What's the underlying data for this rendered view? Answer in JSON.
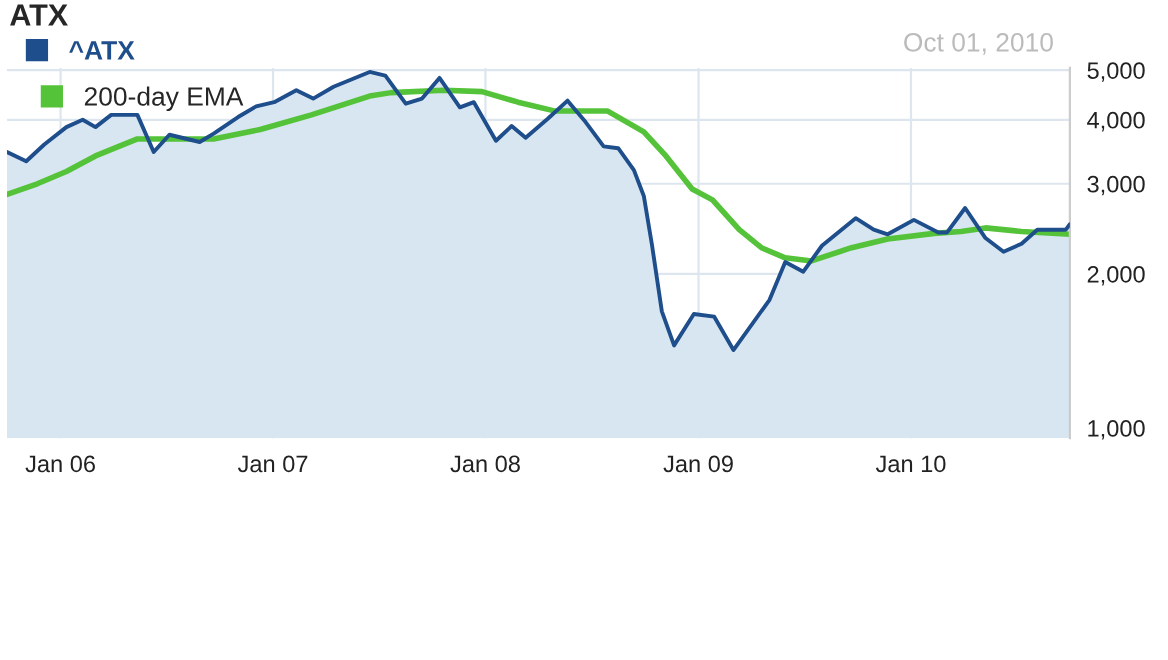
{
  "chart_data": {
    "type": "area",
    "title": "ATX",
    "annotations": [
      "Oct 01, 2010"
    ],
    "log": "y",
    "grid": true,
    "legend": "top left",
    "xlim": [
      "2005-10-01",
      "2010-10-01"
    ],
    "xticks": [
      {
        "value": "2006-01-01",
        "label": "Jan 06"
      },
      {
        "value": "2007-01-01",
        "label": "Jan 07"
      },
      {
        "value": "2008-01-01",
        "label": "Jan 08"
      },
      {
        "value": "2009-01-01",
        "label": "Jan 09"
      },
      {
        "value": "2010-01-01",
        "label": "Jan 10"
      }
    ],
    "ylim": [
      955,
      5050
    ],
    "yticks": [
      {
        "value": 1000,
        "label": "1,000"
      },
      {
        "value": 2000,
        "label": "2,000"
      },
      {
        "value": 3000,
        "label": "3,000"
      },
      {
        "value": 4000,
        "label": "4,000"
      },
      {
        "value": 5000,
        "label": "5,000"
      }
    ],
    "series": [
      {
        "name": "^ATX",
        "color": "#1f4e8c",
        "x": [
          "2005-10-01",
          "2005-11-03",
          "2005-12-04",
          "2006-01-11",
          "2006-02-08",
          "2006-03-02",
          "2006-03-29",
          "2006-05-13",
          "2006-06-10",
          "2006-07-07",
          "2006-08-28",
          "2006-09-21",
          "2006-11-02",
          "2006-12-03",
          "2007-01-03",
          "2007-02-10",
          "2007-03-11",
          "2007-04-15",
          "2007-06-16",
          "2007-07-13",
          "2007-08-17",
          "2007-09-14",
          "2007-10-14",
          "2007-11-18",
          "2007-12-12",
          "2008-01-19",
          "2008-02-15",
          "2008-03-10",
          "2008-04-17",
          "2008-05-21",
          "2008-06-21",
          "2008-07-22",
          "2008-08-16",
          "2008-09-12",
          "2008-09-29",
          "2008-10-13",
          "2008-10-30",
          "2008-11-20",
          "2008-12-24",
          "2009-01-28",
          "2009-03-02",
          "2009-05-03",
          "2009-05-30",
          "2009-06-30",
          "2009-08-01",
          "2009-09-28",
          "2009-10-29",
          "2009-11-22",
          "2010-01-06",
          "2010-02-17",
          "2010-03-04",
          "2010-04-04",
          "2010-05-09",
          "2010-06-09",
          "2010-07-10",
          "2010-08-06",
          "2010-09-24",
          "2010-10-01"
        ],
        "values": [
          3460,
          3320,
          3580,
          3870,
          4000,
          3870,
          4090,
          4090,
          3460,
          3740,
          3620,
          3760,
          4050,
          4250,
          4330,
          4570,
          4400,
          4640,
          4960,
          4880,
          4300,
          4400,
          4830,
          4230,
          4330,
          3640,
          3890,
          3690,
          4020,
          4360,
          3960,
          3550,
          3520,
          3190,
          2840,
          2280,
          1690,
          1450,
          1670,
          1650,
          1420,
          1780,
          2110,
          2020,
          2270,
          2570,
          2440,
          2390,
          2550,
          2410,
          2410,
          2690,
          2350,
          2210,
          2290,
          2440,
          2440,
          2500
        ]
      },
      {
        "name": "200-day EMA",
        "type": "line",
        "color": "#55c33a",
        "x": [
          "2005-10-01",
          "2005-11-22",
          "2006-01-11",
          "2006-03-02",
          "2006-05-13",
          "2006-06-13",
          "2006-09-21",
          "2006-12-10",
          "2007-03-08",
          "2007-06-16",
          "2007-07-23",
          "2007-10-21",
          "2007-12-26",
          "2008-02-26",
          "2008-04-30",
          "2008-07-29",
          "2008-09-29",
          "2008-11-06",
          "2008-12-21",
          "2009-01-25",
          "2009-03-12",
          "2009-04-19",
          "2009-05-30",
          "2009-07-14",
          "2009-09-21",
          "2009-11-22",
          "2010-02-10",
          "2010-03-28",
          "2010-05-09",
          "2010-07-10",
          "2010-10-01"
        ],
        "values": [
          2860,
          3000,
          3170,
          3400,
          3670,
          3670,
          3670,
          3830,
          4090,
          4450,
          4520,
          4570,
          4540,
          4330,
          4160,
          4160,
          3790,
          3400,
          2930,
          2790,
          2440,
          2250,
          2150,
          2120,
          2250,
          2340,
          2400,
          2420,
          2460,
          2420,
          2390
        ]
      }
    ]
  }
}
